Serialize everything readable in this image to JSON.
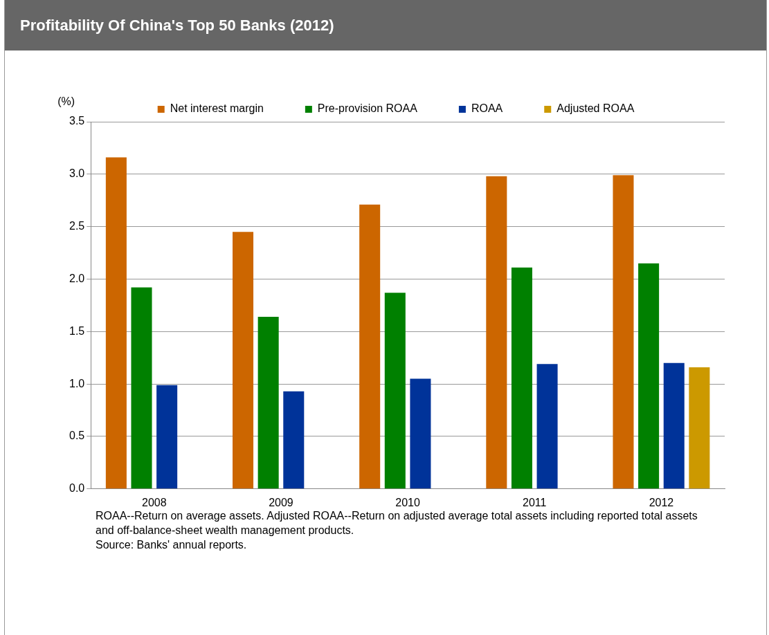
{
  "chart_data": {
    "type": "bar",
    "title": "Profitability Of China's Top 50 Banks (2012)",
    "ylabel": "(%)",
    "categories": [
      "2008",
      "2009",
      "2010",
      "2011",
      "2012"
    ],
    "series": [
      {
        "name": "Net interest margin",
        "color": "#cc6600",
        "values": [
          3.16,
          2.45,
          2.71,
          2.98,
          2.99
        ]
      },
      {
        "name": "Pre-provision ROAA",
        "color": "#008000",
        "values": [
          1.92,
          1.64,
          1.87,
          2.11,
          2.15
        ]
      },
      {
        "name": "ROAA",
        "color": "#003399",
        "values": [
          0.99,
          0.93,
          1.05,
          1.19,
          1.2
        ]
      },
      {
        "name": "Adjusted ROAA",
        "color": "#cc9900",
        "values": [
          null,
          null,
          null,
          null,
          1.16
        ]
      }
    ],
    "ylim": [
      0,
      3.5
    ],
    "yticks": [
      {
        "value": 0,
        "label": "0.0"
      },
      {
        "value": 0.5,
        "label": "0.5"
      },
      {
        "value": 1,
        "label": "1.0"
      },
      {
        "value": 1.5,
        "label": "1.5"
      },
      {
        "value": 2,
        "label": "2.0"
      },
      {
        "value": 2.5,
        "label": "2.5"
      },
      {
        "value": 3,
        "label": "3.0"
      },
      {
        "value": 3.5,
        "label": "3.5"
      }
    ],
    "grid": "y",
    "legend": "top",
    "annotations": [
      "ROAA--Return on average assets. Adjusted ROAA--Return on adjusted average total assets including reported total assets and off-balance-sheet wealth management products.",
      "Source: Banks' annual reports."
    ]
  }
}
